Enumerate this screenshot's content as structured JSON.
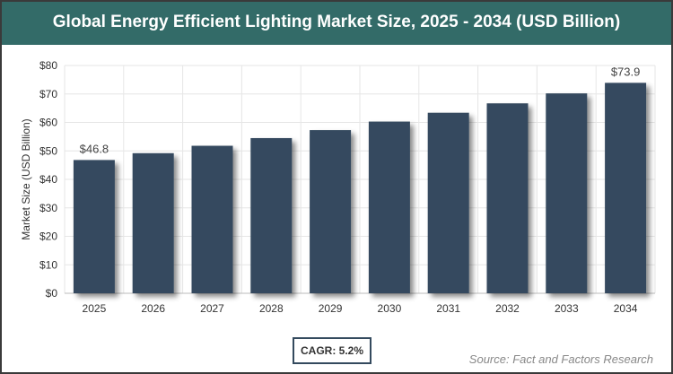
{
  "title": "Global Energy Efficient Lighting Market Size, 2025 - 2034 (USD Billion)",
  "cagr_label": "CAGR: 5.2%",
  "source": "Source: Fact and Factors Research",
  "colors": {
    "header": "#336b68",
    "bar": "#344a5e"
  },
  "chart_data": {
    "type": "bar",
    "title": "Global Energy Efficient Lighting Market Size, 2025 - 2034 (USD Billion)",
    "xlabel": "",
    "ylabel": "Market Size (USD Billion)",
    "categories": [
      "2025",
      "2026",
      "2027",
      "2028",
      "2029",
      "2030",
      "2031",
      "2032",
      "2033",
      "2034"
    ],
    "values": [
      46.8,
      49.2,
      51.8,
      54.5,
      57.3,
      60.3,
      63.4,
      66.7,
      70.2,
      73.9
    ],
    "data_labels": {
      "0": "$46.8",
      "9": "$73.9"
    },
    "ylim": [
      0,
      80
    ],
    "yticks": [
      "$0",
      "$10",
      "$20",
      "$30",
      "$40",
      "$50",
      "$60",
      "$70",
      "$80"
    ],
    "grid": true,
    "legend": "none"
  }
}
